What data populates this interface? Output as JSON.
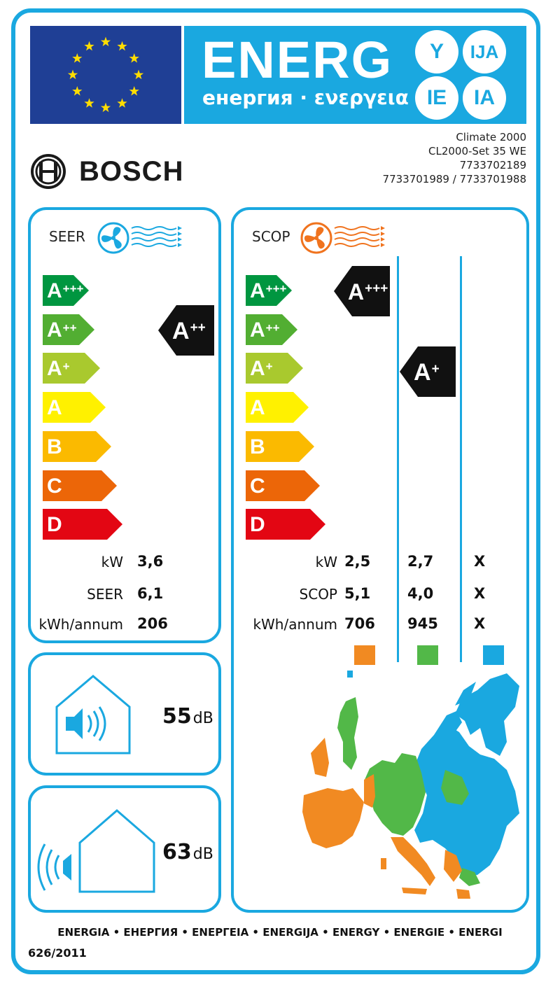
{
  "header": {
    "energy_word": "ENERG",
    "energy_subtitle": "енергия · ενεργεια",
    "suffixes": [
      "Y",
      "IJA",
      "IE",
      "IA"
    ]
  },
  "brand": {
    "name": "BOSCH"
  },
  "model": {
    "lines": [
      "Climate 2000",
      "CL2000-Set 35 WE",
      "7733702189",
      "7733701989 / 7733701988"
    ]
  },
  "scale": {
    "classes": [
      {
        "letter": "A",
        "plus": "+++",
        "color": "#009640"
      },
      {
        "letter": "A",
        "plus": "++",
        "color": "#52ae32"
      },
      {
        "letter": "A",
        "plus": "+",
        "color": "#a9c92e"
      },
      {
        "letter": "A",
        "plus": "",
        "color": "#fff100"
      },
      {
        "letter": "B",
        "plus": "",
        "color": "#fbba00"
      },
      {
        "letter": "C",
        "plus": "",
        "color": "#ec6608"
      },
      {
        "letter": "D",
        "plus": "",
        "color": "#e30613"
      }
    ]
  },
  "seer": {
    "title": "SEER",
    "rating": {
      "letter": "A",
      "plus": "++"
    },
    "rows": [
      {
        "label": "kW",
        "value": "3,6"
      },
      {
        "label": "SEER",
        "value": "6,1"
      },
      {
        "label": "kWh/annum",
        "value": "206"
      }
    ]
  },
  "scop": {
    "title": "SCOP",
    "ratings": [
      {
        "letter": "A",
        "plus": "+++"
      },
      {
        "letter": "A",
        "plus": "+"
      }
    ],
    "rows": [
      {
        "label": "kW",
        "values": [
          "2,5",
          "2,7",
          "X"
        ]
      },
      {
        "label": "SCOP",
        "values": [
          "5,1",
          "4,0",
          "X"
        ]
      },
      {
        "label": "kWh/annum",
        "values": [
          "706",
          "945",
          "X"
        ]
      }
    ],
    "zone_colors": [
      "#f18a22",
      "#52b848",
      "#1aa8e0"
    ]
  },
  "noise": {
    "indoor": {
      "value": "55",
      "unit": "dB"
    },
    "outdoor": {
      "value": "63",
      "unit": "dB"
    }
  },
  "footer": {
    "languages": "ENERGIA • ЕНЕРГИЯ • ΕΝΕΡΓΕΙΑ • ENERGIJA • ENERGY • ENERGIE • ENERGI",
    "regulation": "626/2011"
  },
  "colors": {
    "accent": "#1aa8e0",
    "eu_blue": "#1f3f95",
    "eu_star": "#ffdd00",
    "cool_fan": "#1aa8e0",
    "heat_fan": "#f0731e"
  }
}
